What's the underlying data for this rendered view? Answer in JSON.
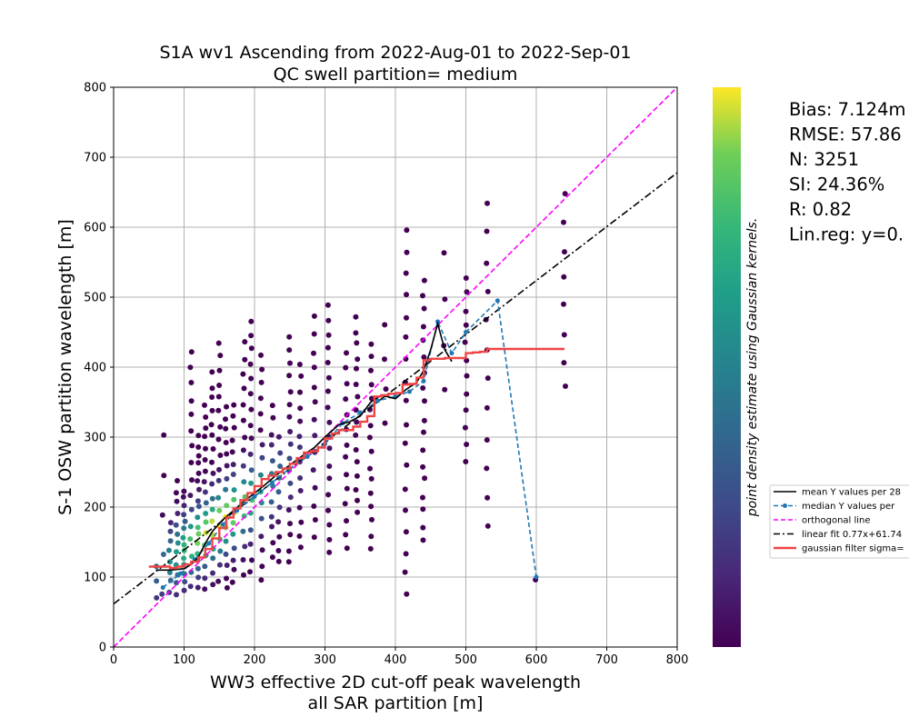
{
  "chart_data": {
    "type": "scatter",
    "title": "S1A wv1 Ascending from 2022-Aug-01 to 2022-Sep-01",
    "subtitle": "QC swell partition= medium",
    "xlabel": "WW3 effective 2D cut-off peak wavelength",
    "xlabel2": "all SAR partition [m]",
    "ylabel": "S-1 OSW partition wavelength [m]",
    "xlim": [
      0,
      800
    ],
    "ylim": [
      0,
      800
    ],
    "xticks": [
      0,
      100,
      200,
      300,
      400,
      500,
      600,
      700,
      800
    ],
    "yticks": [
      0,
      100,
      200,
      300,
      400,
      500,
      600,
      700,
      800
    ],
    "grid": true,
    "colorbar_label": "point density estimate using Gaussian kernels.",
    "colormap": [
      "#440154",
      "#3b528b",
      "#21918c",
      "#5ec962",
      "#fde725"
    ],
    "stats": [
      "Bias: 7.124m",
      "RMSE: 57.86",
      "N: 3251",
      "SI: 24.36%",
      "R: 0.82",
      "Lin.reg: y=0."
    ],
    "legend": {
      "placement": "right of colorbar",
      "entries": [
        "mean Y values per 28",
        "median Y values per",
        "orthogonal line",
        "linear fit 0.77x+61.74",
        "gaussian filter sigma="
      ]
    },
    "columns": [
      {
        "x": 60,
        "ymin": 68,
        "ymax": 115,
        "n": 3
      },
      {
        "x": 70,
        "ymin": 75,
        "ymax": 300,
        "n": 5
      },
      {
        "x": 80,
        "ymin": 80,
        "ymax": 180,
        "n": 8
      },
      {
        "x": 90,
        "ymin": 75,
        "ymax": 235,
        "n": 12
      },
      {
        "x": 100,
        "ymin": 82,
        "ymax": 225,
        "n": 14
      },
      {
        "x": 110,
        "ymin": 85,
        "ymax": 420,
        "n": 16
      },
      {
        "x": 120,
        "ymin": 85,
        "ymax": 300,
        "n": 18
      },
      {
        "x": 130,
        "ymin": 85,
        "ymax": 345,
        "n": 18
      },
      {
        "x": 140,
        "ymin": 90,
        "ymax": 390,
        "n": 18
      },
      {
        "x": 150,
        "ymin": 95,
        "ymax": 437,
        "n": 18
      },
      {
        "x": 160,
        "ymin": 82,
        "ymax": 345,
        "n": 16
      },
      {
        "x": 170,
        "ymin": 92,
        "ymax": 345,
        "n": 16
      },
      {
        "x": 185,
        "ymin": 100,
        "ymax": 435,
        "n": 16
      },
      {
        "x": 195,
        "ymin": 105,
        "ymax": 467,
        "n": 18
      },
      {
        "x": 210,
        "ymin": 95,
        "ymax": 420,
        "n": 16
      },
      {
        "x": 225,
        "ymin": 130,
        "ymax": 345,
        "n": 12
      },
      {
        "x": 235,
        "ymin": 120,
        "ymax": 300,
        "n": 10
      },
      {
        "x": 250,
        "ymin": 120,
        "ymax": 442,
        "n": 18
      },
      {
        "x": 265,
        "ymin": 140,
        "ymax": 405,
        "n": 14
      },
      {
        "x": 285,
        "ymin": 155,
        "ymax": 470,
        "n": 14
      },
      {
        "x": 305,
        "ymin": 135,
        "ymax": 490,
        "n": 18
      },
      {
        "x": 330,
        "ymin": 140,
        "ymax": 420,
        "n": 14
      },
      {
        "x": 345,
        "ymin": 190,
        "ymax": 470,
        "n": 16
      },
      {
        "x": 365,
        "ymin": 140,
        "ymax": 435,
        "n": 16
      },
      {
        "x": 385,
        "ymin": 320,
        "ymax": 460,
        "n": 4
      },
      {
        "x": 415,
        "ymin": 75,
        "ymax": 595,
        "n": 18
      },
      {
        "x": 440,
        "ymin": 150,
        "ymax": 525,
        "n": 18
      },
      {
        "x": 470,
        "ymin": 365,
        "ymax": 562,
        "n": 4
      },
      {
        "x": 500,
        "ymin": 265,
        "ymax": 530,
        "n": 12
      },
      {
        "x": 530,
        "ymin": 170,
        "ymax": 635,
        "n": 12
      },
      {
        "x": 600,
        "ymin": 98,
        "ymax": 100,
        "n": 1
      },
      {
        "x": 640,
        "ymin": 370,
        "ymax": 645,
        "n": 8
      }
    ],
    "mean_line": {
      "x": [
        60,
        80,
        100,
        110,
        120,
        130,
        140,
        155,
        170,
        185,
        200,
        215,
        230,
        250,
        270,
        285,
        300,
        320,
        335,
        350,
        365,
        380,
        400,
        415,
        430,
        440,
        450,
        460,
        470,
        480
      ],
      "y": [
        110,
        110,
        112,
        118,
        128,
        148,
        165,
        182,
        195,
        208,
        220,
        232,
        245,
        260,
        275,
        285,
        300,
        318,
        322,
        330,
        350,
        360,
        355,
        368,
        378,
        395,
        425,
        462,
        425,
        408
      ]
    },
    "median_line": {
      "x": [
        70,
        95,
        115,
        135,
        155,
        175,
        200,
        225,
        250,
        275,
        300,
        325,
        350,
        375,
        400,
        420,
        440,
        460,
        480,
        500,
        545,
        600
      ],
      "y": [
        85,
        105,
        125,
        148,
        175,
        195,
        215,
        235,
        255,
        272,
        290,
        320,
        335,
        352,
        358,
        365,
        380,
        465,
        420,
        450,
        495,
        100
      ]
    },
    "orthogonal_line": {
      "x": [
        0,
        800
      ],
      "y": [
        0,
        800
      ]
    },
    "linear_fit": {
      "slope": 0.77,
      "intercept": 61.74,
      "x": [
        0,
        800
      ]
    },
    "gaussian_step": {
      "x": [
        50,
        60,
        70,
        80,
        90,
        100,
        110,
        120,
        130,
        140,
        150,
        160,
        170,
        180,
        190,
        200,
        210,
        220,
        230,
        240,
        250,
        260,
        270,
        280,
        290,
        300,
        310,
        320,
        330,
        340,
        350,
        360,
        370,
        380,
        390,
        400,
        410,
        420,
        430,
        440,
        450,
        460,
        470,
        480,
        490,
        500,
        510,
        520,
        530,
        540,
        560,
        580,
        600,
        620,
        640
      ],
      "y": [
        115,
        115,
        115,
        113,
        115,
        118,
        122,
        128,
        140,
        155,
        170,
        185,
        198,
        210,
        220,
        230,
        240,
        245,
        250,
        255,
        262,
        270,
        278,
        280,
        285,
        298,
        305,
        310,
        310,
        315,
        322,
        330,
        358,
        360,
        362,
        363,
        375,
        376,
        385,
        410,
        412,
        412,
        413,
        413,
        413,
        420,
        421,
        422,
        426,
        426,
        426,
        426,
        426,
        426,
        426
      ]
    }
  }
}
